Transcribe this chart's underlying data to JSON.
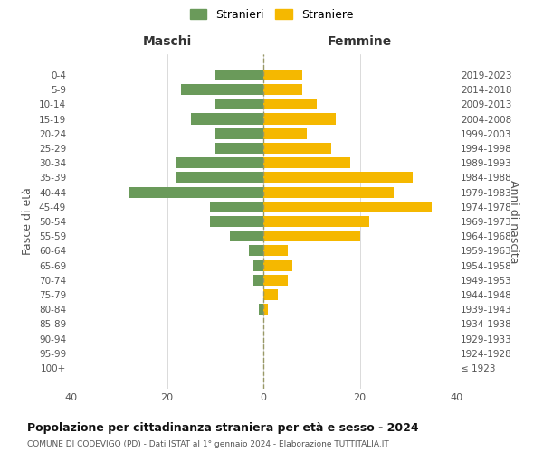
{
  "age_groups": [
    "100+",
    "95-99",
    "90-94",
    "85-89",
    "80-84",
    "75-79",
    "70-74",
    "65-69",
    "60-64",
    "55-59",
    "50-54",
    "45-49",
    "40-44",
    "35-39",
    "30-34",
    "25-29",
    "20-24",
    "15-19",
    "10-14",
    "5-9",
    "0-4"
  ],
  "birth_years": [
    "≤ 1923",
    "1924-1928",
    "1929-1933",
    "1934-1938",
    "1939-1943",
    "1944-1948",
    "1949-1953",
    "1954-1958",
    "1959-1963",
    "1964-1968",
    "1969-1973",
    "1974-1978",
    "1979-1983",
    "1984-1988",
    "1989-1993",
    "1994-1998",
    "1999-2003",
    "2004-2008",
    "2009-2013",
    "2014-2018",
    "2019-2023"
  ],
  "males": [
    0,
    0,
    0,
    0,
    1,
    0,
    2,
    2,
    3,
    7,
    11,
    11,
    28,
    18,
    18,
    10,
    10,
    15,
    10,
    17,
    10
  ],
  "females": [
    0,
    0,
    0,
    0,
    1,
    3,
    5,
    6,
    5,
    20,
    22,
    35,
    27,
    31,
    18,
    14,
    9,
    15,
    11,
    8,
    8
  ],
  "color_males": "#6a9a5a",
  "color_females": "#f5b800",
  "title": "Popolazione per cittadinanza straniera per età e sesso - 2024",
  "subtitle": "COMUNE DI CODEVIGO (PD) - Dati ISTAT al 1° gennaio 2024 - Elaborazione TUTTITALIA.IT",
  "xlabel_left": "Maschi",
  "xlabel_right": "Femmine",
  "ylabel_left": "Fasce di età",
  "ylabel_right": "Anni di nascita",
  "legend_males": "Stranieri",
  "legend_females": "Straniere",
  "xlim": 40,
  "background_color": "#ffffff",
  "grid_color": "#cccccc"
}
